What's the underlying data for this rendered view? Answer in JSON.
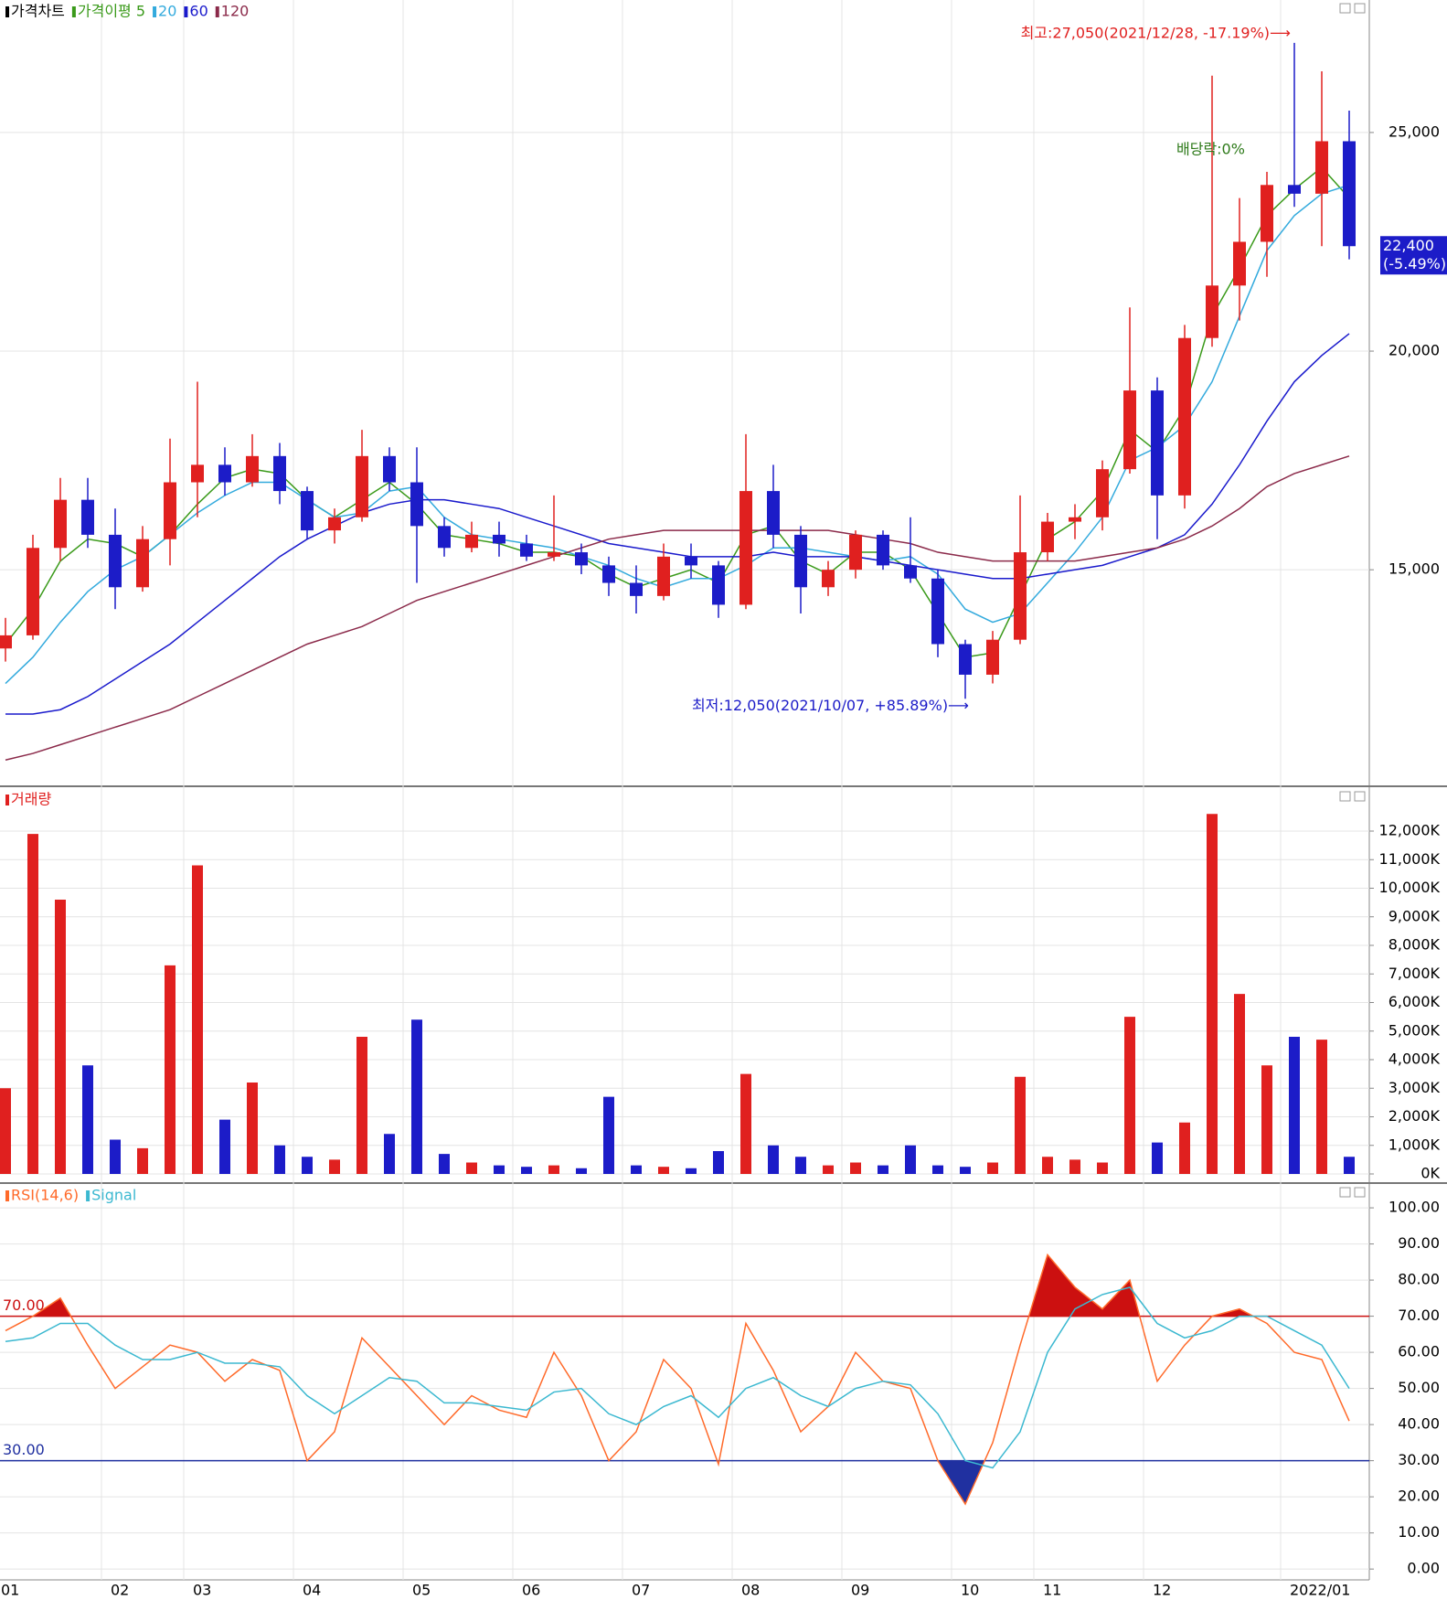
{
  "chart_data": [
    {
      "type": "candlestick",
      "title": "가격차트",
      "open": [
        13200,
        13500,
        15500,
        16600,
        15800,
        14600,
        15700,
        17000,
        17400,
        17000,
        17600,
        16800,
        15900,
        16200,
        17600,
        17000,
        16000,
        15500,
        15800,
        15600,
        15300,
        15400,
        15100,
        14700,
        14400,
        15300,
        15100,
        14200,
        16800,
        15800,
        14600,
        15000,
        15800,
        15100,
        14800,
        13300,
        12600,
        13400,
        15400,
        16100,
        16200,
        17300,
        19100,
        16700,
        20300,
        21500,
        22500,
        23800,
        23600,
        24800
      ],
      "high": [
        13900,
        15800,
        17100,
        17100,
        16400,
        16000,
        18000,
        19300,
        17800,
        18100,
        17900,
        16900,
        16400,
        18200,
        17800,
        17800,
        16200,
        16100,
        16100,
        15800,
        16700,
        15600,
        15300,
        15100,
        15600,
        15600,
        15200,
        18100,
        17400,
        16000,
        15200,
        15900,
        15900,
        16200,
        15000,
        13400,
        13600,
        16700,
        16300,
        16500,
        17500,
        21000,
        19400,
        20600,
        26300,
        23500,
        24100,
        27050,
        26400,
        25500
      ],
      "low": [
        12900,
        13400,
        15200,
        15500,
        14100,
        14500,
        15100,
        16200,
        16700,
        16900,
        16500,
        15700,
        15600,
        16100,
        16800,
        14700,
        15300,
        15400,
        15300,
        15200,
        15200,
        14900,
        14400,
        14000,
        14300,
        14800,
        13900,
        14100,
        15500,
        14000,
        14400,
        14800,
        15000,
        14700,
        13000,
        12050,
        12400,
        13300,
        15200,
        15700,
        15900,
        17200,
        15700,
        16400,
        20100,
        20700,
        21700,
        23300,
        22400,
        22100
      ],
      "close": [
        13500,
        15500,
        16600,
        15800,
        14600,
        15700,
        17000,
        17400,
        17000,
        17600,
        16800,
        15900,
        16200,
        17600,
        17000,
        16000,
        15500,
        15800,
        15600,
        15300,
        15400,
        15100,
        14700,
        14400,
        15300,
        15100,
        14200,
        16800,
        15800,
        14600,
        15000,
        15800,
        15100,
        14800,
        13300,
        12600,
        13400,
        15400,
        16100,
        16200,
        17300,
        19100,
        16700,
        20300,
        21500,
        22500,
        23800,
        23600,
        24800,
        22400
      ],
      "up_color": "#e0201f",
      "down_color": "#1c1cc8",
      "series": [
        {
          "name": "가격이평 5",
          "color": "#3a9a1a",
          "values": [
            13300,
            14100,
            15200,
            15700,
            15600,
            15300,
            15800,
            16500,
            17100,
            17300,
            17200,
            16600,
            16200,
            16600,
            17000,
            16500,
            15800,
            15700,
            15600,
            15400,
            15400,
            15300,
            14900,
            14600,
            14800,
            15000,
            14700,
            15800,
            16000,
            15200,
            14900,
            15400,
            15400,
            15000,
            14000,
            13000,
            13100,
            14400,
            15700,
            16100,
            16800,
            18200,
            17700,
            18700,
            20800,
            21900,
            23100,
            23700,
            24200,
            23500
          ]
        },
        {
          "name": "20",
          "color": "#33aadd",
          "values": [
            12400,
            13000,
            13800,
            14500,
            15000,
            15300,
            15800,
            16300,
            16700,
            17000,
            17000,
            16600,
            16200,
            16300,
            16800,
            16900,
            16200,
            15800,
            15700,
            15600,
            15500,
            15300,
            15100,
            14800,
            14600,
            14800,
            14800,
            15100,
            15500,
            15500,
            15400,
            15300,
            15200,
            15300,
            14900,
            14100,
            13800,
            14000,
            14700,
            15400,
            16200,
            17500,
            17800,
            18300,
            19300,
            20800,
            22300,
            23100,
            23600,
            23800
          ]
        },
        {
          "name": "60",
          "color": "#1a1acc",
          "values": [
            11700,
            11700,
            11800,
            12100,
            12500,
            12900,
            13300,
            13800,
            14300,
            14800,
            15300,
            15700,
            16000,
            16300,
            16500,
            16600,
            16600,
            16500,
            16400,
            16200,
            16000,
            15800,
            15600,
            15500,
            15400,
            15300,
            15300,
            15300,
            15400,
            15300,
            15300,
            15300,
            15200,
            15100,
            15000,
            14900,
            14800,
            14800,
            14900,
            15000,
            15100,
            15300,
            15500,
            15800,
            16500,
            17400,
            18400,
            19300,
            19900,
            20400
          ]
        },
        {
          "name": "120",
          "color": "#8b2a4a",
          "values": [
            10650,
            10800,
            11000,
            11200,
            11400,
            11600,
            11800,
            12100,
            12400,
            12700,
            13000,
            13300,
            13500,
            13700,
            14000,
            14300,
            14500,
            14700,
            14900,
            15100,
            15300,
            15500,
            15700,
            15800,
            15900,
            15900,
            15900,
            15900,
            15900,
            15900,
            15900,
            15800,
            15700,
            15600,
            15400,
            15300,
            15200,
            15200,
            15200,
            15200,
            15300,
            15400,
            15500,
            15700,
            16000,
            16400,
            16900,
            17200,
            17400,
            17600
          ]
        }
      ],
      "ylim": [
        10090,
        28030
      ],
      "yticks": [
        {
          "value": 15000,
          "label": "15,000"
        },
        {
          "value": 20000,
          "label": "20,000"
        },
        {
          "value": 25000,
          "label": "25,000"
        }
      ],
      "grid": true,
      "annotations": [
        {
          "text": "최고:27,050(2021/12/28, -17.19%)⟶",
          "color": "#e0201f"
        },
        {
          "text": "최저:12,050(2021/10/07, +85.89%)⟶",
          "color": "#1c1cc8"
        },
        {
          "text": "배당락:0%",
          "color": "#2e7a1a"
        }
      ],
      "last_label": [
        "22,400",
        "(-5.49%)"
      ]
    },
    {
      "type": "bar",
      "title": "거래량",
      "color": "#e0201f",
      "values": [
        3000,
        11900,
        9600,
        3800,
        1200,
        900,
        7300,
        10800,
        1900,
        3200,
        1000,
        600,
        500,
        4800,
        1400,
        5400,
        700,
        400,
        300,
        250,
        300,
        200,
        2700,
        300,
        250,
        200,
        800,
        3500,
        1000,
        600,
        300,
        400,
        300,
        1000,
        300,
        250,
        400,
        3400,
        600,
        500,
        400,
        5500,
        1100,
        1800,
        12600,
        6300,
        3800,
        4800,
        4700,
        600
      ],
      "ylim": [
        -288,
        13504
      ],
      "yticks": [
        {
          "value": 0,
          "label": "0K"
        },
        {
          "value": 1000,
          "label": "1,000K"
        },
        {
          "value": 2000,
          "label": "2,000K"
        },
        {
          "value": 3000,
          "label": "3,000K"
        },
        {
          "value": 4000,
          "label": "4,000K"
        },
        {
          "value": 5000,
          "label": "5,000K"
        },
        {
          "value": 6000,
          "label": "6,000K"
        },
        {
          "value": 7000,
          "label": "7,000K"
        },
        {
          "value": 8000,
          "label": "8,000K"
        },
        {
          "value": 9000,
          "label": "9,000K"
        },
        {
          "value": 10000,
          "label": "10,000K"
        },
        {
          "value": 11000,
          "label": "11,000K"
        },
        {
          "value": 12000,
          "label": "12,000K"
        }
      ],
      "grid": true
    },
    {
      "type": "line",
      "categories": [
        "01",
        null,
        null,
        null,
        "02",
        null,
        null,
        "03",
        null,
        null,
        null,
        "04",
        null,
        null,
        null,
        "05",
        null,
        null,
        null,
        "06",
        null,
        null,
        null,
        "07",
        null,
        null,
        null,
        "08",
        null,
        null,
        null,
        "09",
        null,
        null,
        null,
        "10",
        null,
        null,
        "11",
        null,
        null,
        null,
        "12",
        null,
        null,
        null,
        null,
        "2022/01",
        null,
        null
      ],
      "series": [
        {
          "name": "RSI(14,6)",
          "color": "#ff6a2a",
          "values": [
            66,
            70,
            75,
            62,
            50,
            56,
            62,
            60,
            52,
            58,
            55,
            30,
            38,
            64,
            56,
            48,
            40,
            48,
            44,
            42,
            60,
            48,
            30,
            38,
            58,
            50,
            29,
            68,
            55,
            38,
            45,
            60,
            52,
            50,
            30,
            18,
            35,
            62,
            87,
            78,
            72,
            80,
            52,
            62,
            70,
            72,
            68,
            60,
            58,
            41
          ]
        },
        {
          "name": "Signal",
          "color": "#3bb8d0",
          "values": [
            63,
            64,
            68,
            68,
            62,
            58,
            58,
            60,
            57,
            57,
            56,
            48,
            43,
            48,
            53,
            52,
            46,
            46,
            45,
            44,
            49,
            50,
            43,
            40,
            45,
            48,
            42,
            50,
            53,
            48,
            45,
            50,
            52,
            51,
            43,
            30,
            28,
            38,
            60,
            72,
            76,
            78,
            68,
            64,
            66,
            70,
            70,
            66,
            62,
            50
          ]
        }
      ],
      "levels": [
        {
          "value": 70,
          "label": "70.00",
          "color": "#cc1010"
        },
        {
          "value": 30,
          "label": "30.00",
          "color": "#2030a0"
        }
      ],
      "ylim": [
        -3.0,
        106.6
      ],
      "yticks": [
        {
          "value": 0,
          "label": "0.00"
        },
        {
          "value": 10,
          "label": "10.00"
        },
        {
          "value": 20,
          "label": "20.00"
        },
        {
          "value": 30,
          "label": "30.00"
        },
        {
          "value": 40,
          "label": "40.00"
        },
        {
          "value": 50,
          "label": "50.00"
        },
        {
          "value": 60,
          "label": "60.00"
        },
        {
          "value": 70,
          "label": "70.00"
        },
        {
          "value": 80,
          "label": "80.00"
        },
        {
          "value": 90,
          "label": "90.00"
        },
        {
          "value": 100,
          "label": "100.00"
        }
      ],
      "grid": true
    }
  ]
}
